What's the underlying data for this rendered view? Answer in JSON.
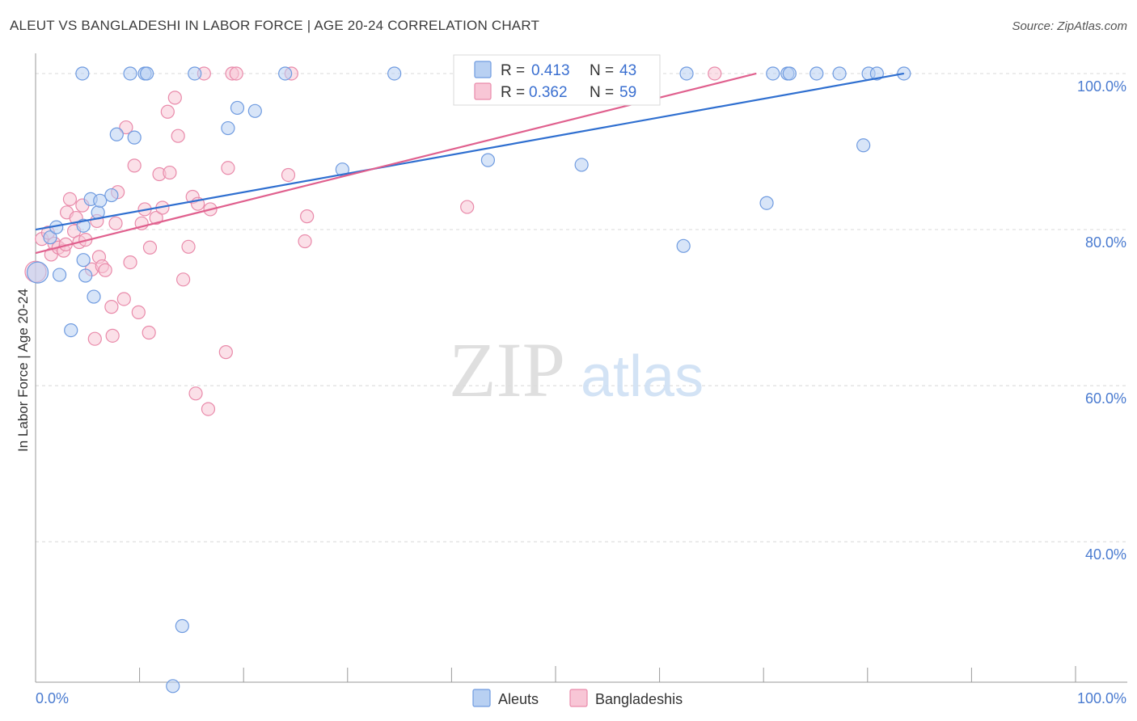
{
  "title": "ALEUT VS BANGLADESHI IN LABOR FORCE | AGE 20-24 CORRELATION CHART",
  "source": "Source: ZipAtlas.com",
  "watermark": {
    "zip": "ZIP",
    "atlas": "atlas"
  },
  "colors": {
    "aleut_fill": "#b8d0f2",
    "aleut_stroke": "#6f9be0",
    "aleut_line": "#2f6fd0",
    "bangla_fill": "#f8c6d6",
    "bangla_stroke": "#e98aaa",
    "bangla_line": "#e0608e",
    "axis_text": "#4a7bd0",
    "grid": "#d8d8d8"
  },
  "legend": {
    "rows": [
      {
        "r_label": "R = ",
        "r_value": "0.413",
        "n_label": "N = ",
        "n_value": "43"
      },
      {
        "r_label": "R = ",
        "r_value": "0.362",
        "n_label": "N = ",
        "n_value": "59"
      }
    ],
    "bottom": [
      "Aleuts",
      "Bangladeshis"
    ]
  },
  "chart_data": {
    "type": "scatter",
    "title": "ALEUT VS BANGLADESHI IN LABOR FORCE | AGE 20-24 CORRELATION CHART",
    "xlabel": "",
    "ylabel": "In Labor Force | Age 20-24",
    "xlim": [
      0,
      100
    ],
    "ylim": [
      22,
      103
    ],
    "x_tick_labels": [
      "0.0%",
      "100.0%"
    ],
    "y_ticks": [
      40,
      60,
      80,
      100
    ],
    "y_tick_labels": [
      "40.0%",
      "60.0%",
      "80.0%",
      "100.0%"
    ],
    "grid": true,
    "legend_position": "top-center",
    "series": [
      {
        "name": "Aleuts",
        "r": 0.413,
        "n": 43,
        "trend": [
          [
            0,
            80.0
          ],
          [
            83.5,
            100.0
          ]
        ],
        "points": [
          [
            0.2,
            74.5
          ],
          [
            1.4,
            79.0
          ],
          [
            2.0,
            80.3
          ],
          [
            2.3,
            74.2
          ],
          [
            3.4,
            67.1
          ],
          [
            4.6,
            80.5
          ],
          [
            4.6,
            76.1
          ],
          [
            4.8,
            74.1
          ],
          [
            5.3,
            83.9
          ],
          [
            6.0,
            82.2
          ],
          [
            5.6,
            71.4
          ],
          [
            6.2,
            83.7
          ],
          [
            7.3,
            84.4
          ],
          [
            7.8,
            92.2
          ],
          [
            9.5,
            91.8
          ],
          [
            4.5,
            100.0
          ],
          [
            9.1,
            100.0
          ],
          [
            10.5,
            100.0
          ],
          [
            10.7,
            100.0
          ],
          [
            15.3,
            100.0
          ],
          [
            18.5,
            93.0
          ],
          [
            19.4,
            95.6
          ],
          [
            21.1,
            95.2
          ],
          [
            24.0,
            100.0
          ],
          [
            29.5,
            87.7
          ],
          [
            34.5,
            100.0
          ],
          [
            43.5,
            88.9
          ],
          [
            47.5,
            100.0
          ],
          [
            52.5,
            88.3
          ],
          [
            62.3,
            77.9
          ],
          [
            62.6,
            100.0
          ],
          [
            70.3,
            83.4
          ],
          [
            70.9,
            100.0
          ],
          [
            72.3,
            100.0
          ],
          [
            72.5,
            100.0
          ],
          [
            75.1,
            100.0
          ],
          [
            77.3,
            100.0
          ],
          [
            79.6,
            90.8
          ],
          [
            80.1,
            100.0
          ],
          [
            80.9,
            100.0
          ],
          [
            83.5,
            100.0
          ],
          [
            14.1,
            29.2
          ],
          [
            13.2,
            21.5
          ]
        ]
      },
      {
        "name": "Bangladeshis",
        "r": 0.362,
        "n": 59,
        "trend": [
          [
            0,
            77.0
          ],
          [
            69.3,
            100.0
          ]
        ],
        "points": [
          [
            0.0,
            74.6
          ],
          [
            0.6,
            78.8
          ],
          [
            1.2,
            79.6
          ],
          [
            1.8,
            78.2
          ],
          [
            1.5,
            76.8
          ],
          [
            2.2,
            77.7
          ],
          [
            2.7,
            77.3
          ],
          [
            2.9,
            78.1
          ],
          [
            3.0,
            82.2
          ],
          [
            3.3,
            83.9
          ],
          [
            3.7,
            79.8
          ],
          [
            3.9,
            81.5
          ],
          [
            4.2,
            78.4
          ],
          [
            4.5,
            83.1
          ],
          [
            4.8,
            78.7
          ],
          [
            5.4,
            74.9
          ],
          [
            5.9,
            81.1
          ],
          [
            6.1,
            76.5
          ],
          [
            6.4,
            75.3
          ],
          [
            6.7,
            74.8
          ],
          [
            7.3,
            70.1
          ],
          [
            7.7,
            80.8
          ],
          [
            7.9,
            84.8
          ],
          [
            8.5,
            71.1
          ],
          [
            8.7,
            93.1
          ],
          [
            9.1,
            75.8
          ],
          [
            9.5,
            88.2
          ],
          [
            9.9,
            69.4
          ],
          [
            10.2,
            80.8
          ],
          [
            10.5,
            82.6
          ],
          [
            10.9,
            66.8
          ],
          [
            11.0,
            77.7
          ],
          [
            11.6,
            81.5
          ],
          [
            11.9,
            87.1
          ],
          [
            12.2,
            82.8
          ],
          [
            12.7,
            95.1
          ],
          [
            12.9,
            87.3
          ],
          [
            13.4,
            96.9
          ],
          [
            13.7,
            92.0
          ],
          [
            14.2,
            73.6
          ],
          [
            14.7,
            77.8
          ],
          [
            15.1,
            84.2
          ],
          [
            15.4,
            59.0
          ],
          [
            15.6,
            83.3
          ],
          [
            16.2,
            100.0
          ],
          [
            16.6,
            57.0
          ],
          [
            16.8,
            82.6
          ],
          [
            18.3,
            64.3
          ],
          [
            18.5,
            87.9
          ],
          [
            18.9,
            100.0
          ],
          [
            19.3,
            100.0
          ],
          [
            24.3,
            87.0
          ],
          [
            24.6,
            100.0
          ],
          [
            25.9,
            78.5
          ],
          [
            26.1,
            81.7
          ],
          [
            41.5,
            82.9
          ],
          [
            5.7,
            66.0
          ],
          [
            7.4,
            66.4
          ],
          [
            65.3,
            100.0
          ]
        ]
      }
    ]
  }
}
